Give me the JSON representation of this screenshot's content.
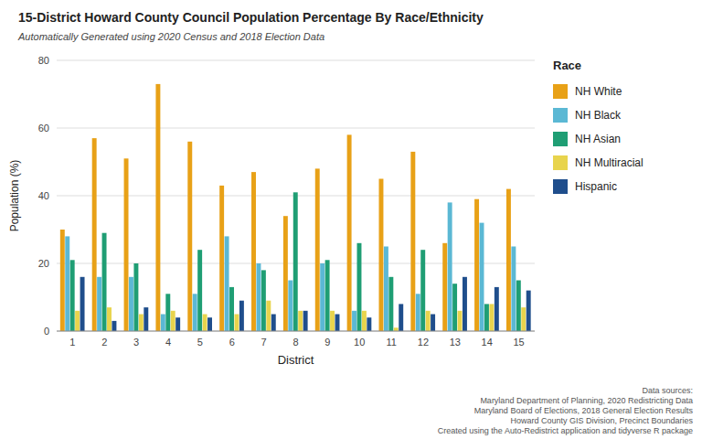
{
  "chart_data": {
    "type": "bar",
    "title": "15-District Howard County Council Population Percentage By Race/Ethnicity",
    "subtitle": "Automatically Generated using 2020 Census and 2018 Election Data",
    "x_label": "District",
    "y_label": "Population (%)",
    "footnote": "Data sources:\nMaryland Department of Planning, 2020 Redistricting Data\nMaryland Board of Elections, 2018 General Election Results\nHoward County GIS Division, Precinct Boundaries\nCreated using the Auto-Redistrict application and tidyverse R package",
    "legend_title": "Race",
    "categories": [
      "1",
      "2",
      "3",
      "4",
      "5",
      "6",
      "7",
      "8",
      "9",
      "10",
      "11",
      "12",
      "13",
      "14",
      "15"
    ],
    "series": [
      {
        "name": "NH White",
        "color": "#E8A117",
        "values": [
          30,
          57,
          51,
          73,
          56,
          43,
          47,
          34,
          48,
          58,
          45,
          53,
          26,
          39,
          42
        ]
      },
      {
        "name": "NH Black",
        "color": "#5BB8D4",
        "values": [
          28,
          16,
          16,
          5,
          11,
          28,
          20,
          15,
          20,
          6,
          25,
          11,
          38,
          32,
          25
        ]
      },
      {
        "name": "NH Asian",
        "color": "#1F9E74",
        "values": [
          21,
          29,
          20,
          11,
          24,
          13,
          18,
          41,
          21,
          26,
          16,
          24,
          14,
          8,
          15
        ]
      },
      {
        "name": "NH Multiracial",
        "color": "#E8D44D",
        "values": [
          6,
          7,
          5,
          6,
          5,
          5,
          9,
          6,
          6,
          6,
          1,
          6,
          6,
          8,
          7
        ]
      },
      {
        "name": "Hispanic",
        "color": "#1F4E8C",
        "values": [
          16,
          3,
          7,
          4,
          4,
          9,
          5,
          6,
          5,
          4,
          8,
          5,
          16,
          13,
          12
        ]
      }
    ],
    "ylim": [
      0,
      80
    ],
    "yticks": [
      0,
      20,
      40,
      60,
      80
    ],
    "grid": true,
    "legend": "right"
  }
}
